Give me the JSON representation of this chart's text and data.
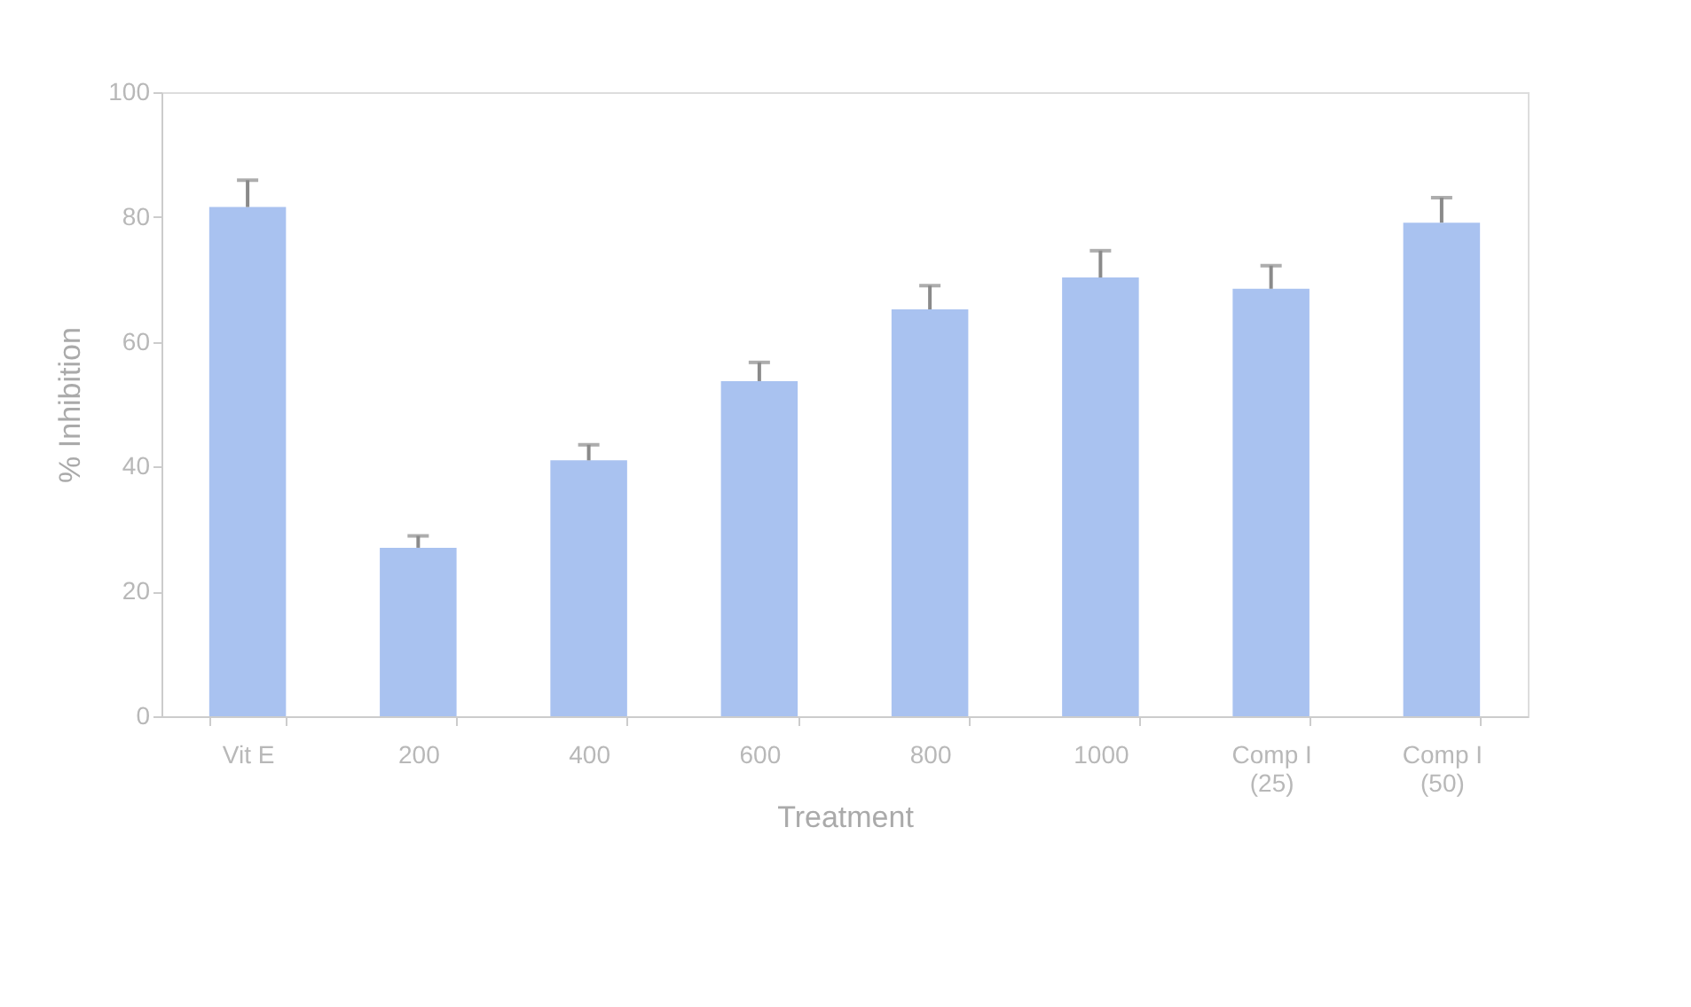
{
  "chart_data": {
    "type": "bar",
    "xlabel": "Treatment",
    "ylabel": "% Inhibition",
    "categories": [
      "Vit E",
      "200",
      "400",
      "600",
      "800",
      "1000",
      "Comp I (25)",
      "Comp I (50)"
    ],
    "values": [
      81.6,
      27.0,
      41.0,
      53.7,
      65.2,
      70.3,
      68.5,
      79.1
    ],
    "errors": [
      4.3,
      1.9,
      2.5,
      3.0,
      3.8,
      4.3,
      3.7,
      4.0
    ],
    "color": "#a9c2f0",
    "ylim": [
      0,
      100
    ],
    "yticks": [
      0,
      20,
      40,
      60,
      80,
      100
    ],
    "grid": false
  }
}
